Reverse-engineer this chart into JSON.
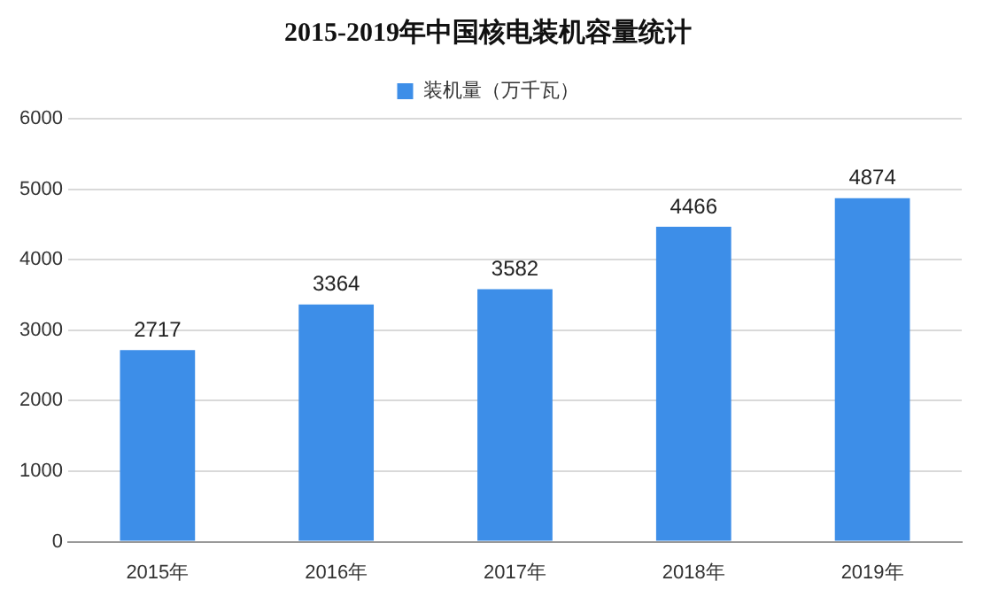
{
  "chart_data": {
    "type": "bar",
    "title": "2015-2019年中国核电装机容量统计",
    "categories": [
      "2015年",
      "2016年",
      "2017年",
      "2018年",
      "2019年"
    ],
    "series": [
      {
        "name": "装机量（万千瓦）",
        "color": "#3d8ee8",
        "values": [
          2717,
          3364,
          3582,
          4466,
          4874
        ]
      }
    ],
    "ylim": [
      0,
      6000
    ],
    "yticks": [
      0,
      1000,
      2000,
      3000,
      4000,
      5000,
      6000
    ],
    "grid": "y",
    "legend": "top",
    "data_labels": true
  }
}
